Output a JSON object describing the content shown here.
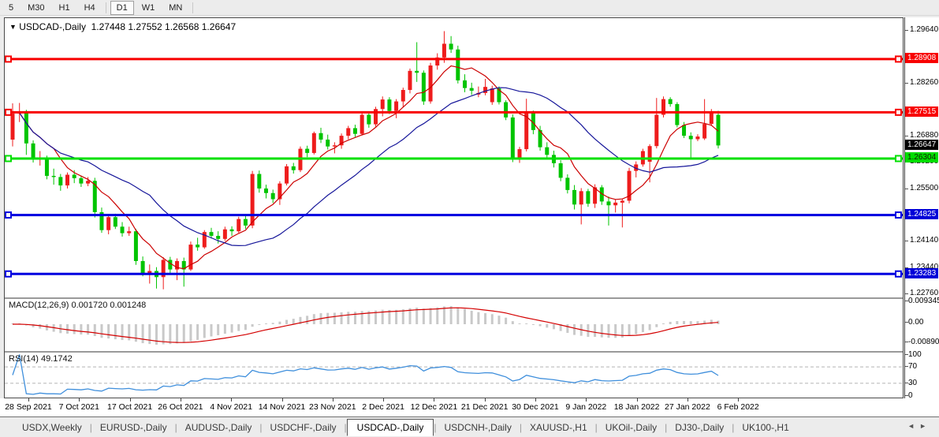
{
  "toolbar": {
    "timeframes": [
      "5",
      "M30",
      "H1",
      "H4",
      "D1",
      "W1",
      "MN"
    ],
    "active": "D1"
  },
  "chart": {
    "dropdown_icon": "▼",
    "title_symbol": "USDCAD-,Daily",
    "title_ohlc": "1.27448 1.27552 1.26568 1.26647"
  },
  "price_axis": {
    "visible_ticks": [
      "1.29640",
      "1.28260",
      "1.26880",
      "1.26200",
      "1.25500",
      "1.24140",
      "1.23440",
      "1.22760"
    ],
    "tags": [
      {
        "text": "1.28908",
        "price": 1.28908,
        "bg": "#f80000",
        "fg": "#ffffff"
      },
      {
        "text": "1.27515",
        "price": 1.27515,
        "bg": "#f80000",
        "fg": "#ffffff"
      },
      {
        "text": "1.26647",
        "price": 1.26647,
        "bg": "#000000",
        "fg": "#ffffff"
      },
      {
        "text": "1.26304",
        "price": 1.26304,
        "bg": "#00dd00",
        "fg": "#102000"
      },
      {
        "text": "1.24825",
        "price": 1.24825,
        "bg": "#0000d8",
        "fg": "#ffffff"
      },
      {
        "text": "1.23283",
        "price": 1.23283,
        "bg": "#0000d8",
        "fg": "#ffffff"
      }
    ]
  },
  "macd_panel": {
    "label": "MACD(12,26,9)",
    "values": "0.001720 0.001248",
    "axis_labels": [
      "0.009345",
      "0.00",
      "-0.00890"
    ],
    "histogram_color": "#c9c9c9",
    "signal_color": "#d40000"
  },
  "rsi_panel": {
    "label": "RSI(14)",
    "value": "49.1742",
    "axis_labels": [
      "100",
      "70",
      "30",
      "0"
    ],
    "levels": [
      70,
      30
    ],
    "line_color": "#3f8fdc",
    "level_color": "#b5b5b5"
  },
  "tabs": {
    "items": [
      "USDX,Weekly",
      "EURUSD-,Daily",
      "AUDUSD-,Daily",
      "USDCHF-,Daily",
      "USDCAD-,Daily",
      "USDCNH-,Daily",
      "XAUUSD-,H1",
      "UKOil-,Daily",
      "DJ30-,Daily",
      "UK100-,H1"
    ],
    "active": "USDCAD-,Daily",
    "left_arrow": "◄",
    "right_arrow": "►"
  },
  "chart_data": {
    "type": "candlestick",
    "symbol": "USDCAD",
    "period": "Daily",
    "current_ohlc": {
      "open": 1.27448,
      "high": 1.27552,
      "low": 1.26568,
      "close": 1.26647
    },
    "price_range": [
      1.2271,
      1.2998
    ],
    "colors": {
      "up": "#ee1c1c",
      "down": "#00c400",
      "ma_fast": "#cc0000",
      "ma_slow": "#16169a"
    },
    "hlines": [
      {
        "price": 1.28908,
        "color": "#f80000",
        "width": 3
      },
      {
        "price": 1.27515,
        "color": "#f80000",
        "width": 3
      },
      {
        "price": 1.26304,
        "color": "#00e000",
        "width": 3
      },
      {
        "price": 1.24825,
        "color": "#0000e0",
        "width": 3
      },
      {
        "price": 1.23283,
        "color": "#0000e0",
        "width": 3
      }
    ],
    "x_labels": [
      "28 Sep 2021",
      "7 Oct 2021",
      "17 Oct 2021",
      "26 Oct 2021",
      "4 Nov 2021",
      "14 Nov 2021",
      "23 Nov 2021",
      "2 Dec 2021",
      "12 Dec 2021",
      "21 Dec 2021",
      "30 Dec 2021",
      "9 Jan 2022",
      "18 Jan 2022",
      "27 Jan 2022",
      "6 Feb 2022"
    ],
    "candles": [
      [
        1.268,
        1.2775,
        1.2662,
        1.2748
      ],
      [
        1.2748,
        1.2776,
        1.2726,
        1.2752
      ],
      [
        1.2752,
        1.2758,
        1.264,
        1.267
      ],
      [
        1.267,
        1.2678,
        1.262,
        1.2628
      ],
      [
        1.2628,
        1.265,
        1.2612,
        1.2632
      ],
      [
        1.2632,
        1.2638,
        1.2576,
        1.2585
      ],
      [
        1.2585,
        1.2604,
        1.2562,
        1.2582
      ],
      [
        1.2582,
        1.259,
        1.2546,
        1.256
      ],
      [
        1.256,
        1.2594,
        1.2552,
        1.2588
      ],
      [
        1.2588,
        1.26,
        1.2566,
        1.2579
      ],
      [
        1.2579,
        1.2586,
        1.2556,
        1.2565
      ],
      [
        1.2565,
        1.2582,
        1.2558,
        1.2572
      ],
      [
        1.2572,
        1.258,
        1.2476,
        1.249
      ],
      [
        1.249,
        1.2502,
        1.2436,
        1.2443
      ],
      [
        1.2443,
        1.2482,
        1.2432,
        1.2477
      ],
      [
        1.2477,
        1.2486,
        1.2446,
        1.2452
      ],
      [
        1.2452,
        1.2464,
        1.2426,
        1.2435
      ],
      [
        1.2435,
        1.2452,
        1.2428,
        1.244
      ],
      [
        1.244,
        1.2446,
        1.2352,
        1.2362
      ],
      [
        1.2362,
        1.2374,
        1.2322,
        1.233
      ],
      [
        1.233,
        1.2353,
        1.2303,
        1.2336
      ],
      [
        1.2336,
        1.2346,
        1.229,
        1.232
      ],
      [
        1.232,
        1.2372,
        1.2288,
        1.2365
      ],
      [
        1.2365,
        1.2373,
        1.233,
        1.234
      ],
      [
        1.234,
        1.2369,
        1.2312,
        1.2362
      ],
      [
        1.2362,
        1.2371,
        1.2295,
        1.234
      ],
      [
        1.234,
        1.2413,
        1.2336,
        1.2405
      ],
      [
        1.2405,
        1.2423,
        1.2389,
        1.2398
      ],
      [
        1.2398,
        1.2443,
        1.2394,
        1.2438
      ],
      [
        1.2438,
        1.2449,
        1.2421,
        1.2428
      ],
      [
        1.2428,
        1.244,
        1.2408,
        1.242
      ],
      [
        1.242,
        1.2452,
        1.2415,
        1.2445
      ],
      [
        1.2445,
        1.2453,
        1.2428,
        1.244
      ],
      [
        1.244,
        1.2478,
        1.2436,
        1.2472
      ],
      [
        1.2472,
        1.248,
        1.2446,
        1.2455
      ],
      [
        1.2455,
        1.2598,
        1.2448,
        1.259
      ],
      [
        1.259,
        1.2599,
        1.2541,
        1.2552
      ],
      [
        1.2552,
        1.2562,
        1.2526,
        1.254
      ],
      [
        1.254,
        1.2549,
        1.2514,
        1.2524
      ],
      [
        1.2524,
        1.2571,
        1.2509,
        1.2565
      ],
      [
        1.2565,
        1.2616,
        1.256,
        1.261
      ],
      [
        1.261,
        1.2619,
        1.2591,
        1.26
      ],
      [
        1.26,
        1.2662,
        1.2595,
        1.2656
      ],
      [
        1.2656,
        1.2664,
        1.2634,
        1.2645
      ],
      [
        1.2645,
        1.2701,
        1.2641,
        1.2697
      ],
      [
        1.2697,
        1.2711,
        1.2671,
        1.268
      ],
      [
        1.268,
        1.2693,
        1.2654,
        1.2662
      ],
      [
        1.2662,
        1.2673,
        1.2644,
        1.2665
      ],
      [
        1.2665,
        1.2696,
        1.2656,
        1.269
      ],
      [
        1.269,
        1.2716,
        1.2681,
        1.271
      ],
      [
        1.271,
        1.2719,
        1.2687,
        1.2695
      ],
      [
        1.2695,
        1.2751,
        1.2691,
        1.2745
      ],
      [
        1.2745,
        1.2753,
        1.2711,
        1.272
      ],
      [
        1.272,
        1.2766,
        1.2714,
        1.276
      ],
      [
        1.276,
        1.2793,
        1.2741,
        1.2785
      ],
      [
        1.2785,
        1.2791,
        1.2747,
        1.2755
      ],
      [
        1.2755,
        1.2786,
        1.2736,
        1.278
      ],
      [
        1.278,
        1.2816,
        1.2764,
        1.281
      ],
      [
        1.281,
        1.2866,
        1.2801,
        1.286
      ],
      [
        1.286,
        1.2935,
        1.2831,
        1.2855
      ],
      [
        1.2855,
        1.2861,
        1.2771,
        1.278
      ],
      [
        1.278,
        1.2881,
        1.2774,
        1.2874
      ],
      [
        1.2874,
        1.2906,
        1.2863,
        1.2895
      ],
      [
        1.2895,
        1.2964,
        1.2881,
        1.2931
      ],
      [
        1.2931,
        1.2951,
        1.2907,
        1.2916
      ],
      [
        1.2916,
        1.2926,
        1.2827,
        1.2835
      ],
      [
        1.2835,
        1.2851,
        1.2804,
        1.2815
      ],
      [
        1.2815,
        1.2829,
        1.2797,
        1.2808
      ],
      [
        1.2798,
        1.2819,
        1.2791,
        1.2802
      ],
      [
        1.2802,
        1.2839,
        1.2796,
        1.2818
      ],
      [
        1.2778,
        1.2821,
        1.2771,
        1.2814
      ],
      [
        1.2814,
        1.2819,
        1.2772,
        1.2778
      ],
      [
        1.2778,
        1.2783,
        1.2731,
        1.2738
      ],
      [
        1.2738,
        1.2746,
        1.2621,
        1.2628
      ],
      [
        1.2628,
        1.2661,
        1.2619,
        1.2655
      ],
      [
        1.2655,
        1.2787,
        1.2649,
        1.275
      ],
      [
        1.275,
        1.2756,
        1.2694,
        1.2705
      ],
      [
        1.2705,
        1.2716,
        1.2651,
        1.266
      ],
      [
        1.266,
        1.2673,
        1.2631,
        1.264
      ],
      [
        1.264,
        1.2651,
        1.2607,
        1.2618
      ],
      [
        1.2618,
        1.2626,
        1.2571,
        1.258
      ],
      [
        1.258,
        1.2589,
        1.2539,
        1.2548
      ],
      [
        1.2548,
        1.2561,
        1.2497,
        1.251
      ],
      [
        1.251,
        1.2553,
        1.2458,
        1.2545
      ],
      [
        1.2545,
        1.2551,
        1.2504,
        1.2512
      ],
      [
        1.2512,
        1.2563,
        1.2501,
        1.2555
      ],
      [
        1.2555,
        1.2561,
        1.2509,
        1.2518
      ],
      [
        1.2518,
        1.2531,
        1.2455,
        1.2508
      ],
      [
        1.2508,
        1.2523,
        1.2489,
        1.2515
      ],
      [
        1.2515,
        1.2526,
        1.245,
        1.252
      ],
      [
        1.252,
        1.2606,
        1.2513,
        1.2598
      ],
      [
        1.2598,
        1.2623,
        1.2581,
        1.2615
      ],
      [
        1.2615,
        1.2656,
        1.2609,
        1.265
      ],
      [
        1.2622,
        1.2668,
        1.2568,
        1.2663
      ],
      [
        1.2663,
        1.2789,
        1.2657,
        1.2745
      ],
      [
        1.2745,
        1.2793,
        1.2738,
        1.2786
      ],
      [
        1.2786,
        1.2791,
        1.2766,
        1.2773
      ],
      [
        1.2773,
        1.2778,
        1.2712,
        1.2718
      ],
      [
        1.2718,
        1.2726,
        1.2684,
        1.269
      ],
      [
        1.269,
        1.2699,
        1.2629,
        1.2681
      ],
      [
        1.2681,
        1.2694,
        1.2676,
        1.2688
      ],
      [
        1.2683,
        1.2786,
        1.2679,
        1.2721
      ],
      [
        1.2721,
        1.276,
        1.2718,
        1.2752
      ],
      [
        1.27448,
        1.27552,
        1.26568,
        1.26647
      ]
    ]
  }
}
